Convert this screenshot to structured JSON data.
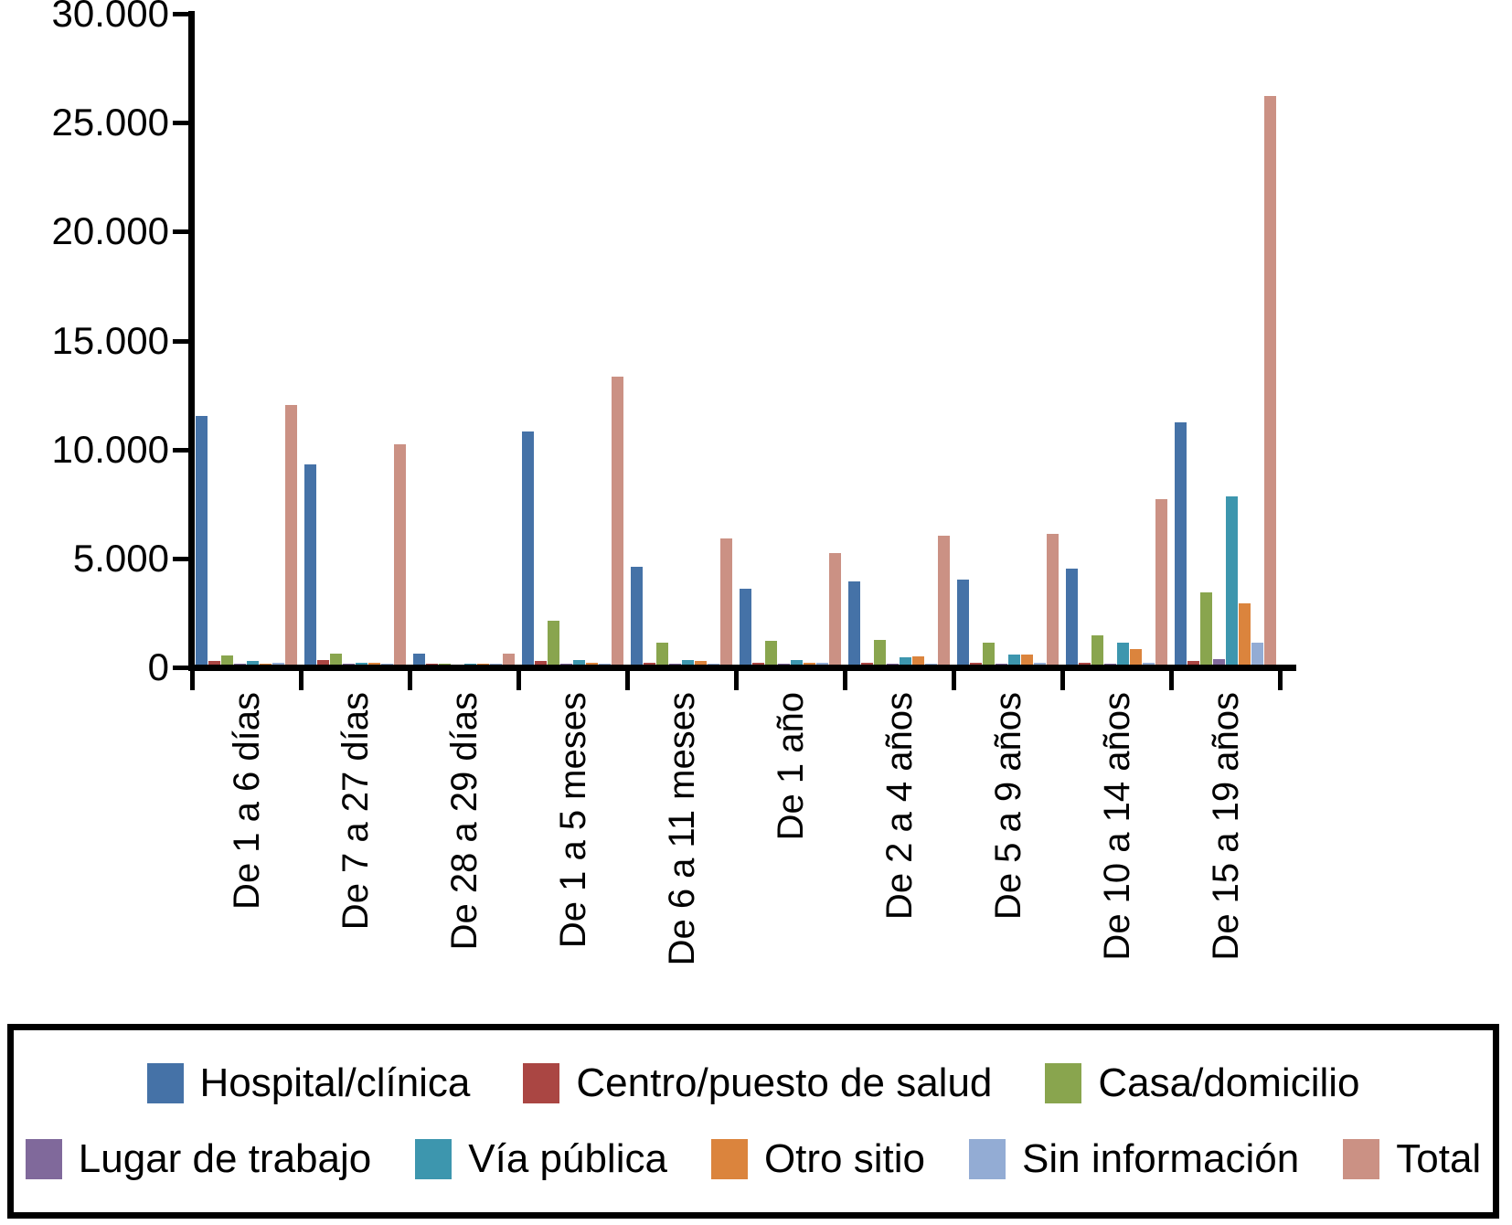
{
  "chart_data": {
    "type": "bar",
    "title": "",
    "xlabel": "",
    "ylabel": "",
    "ylim": [
      0,
      30000
    ],
    "grid": false,
    "legend_position": "bottom-box",
    "y_ticks": [
      {
        "value": 30000,
        "label": "30.000"
      },
      {
        "value": 25000,
        "label": "25.000"
      },
      {
        "value": 20000,
        "label": "20.000"
      },
      {
        "value": 15000,
        "label": "15.000"
      },
      {
        "value": 10000,
        "label": "10.000"
      },
      {
        "value": 5000,
        "label": "5.000"
      },
      {
        "value": 0,
        "label": "0"
      }
    ],
    "categories": [
      "De 1 a 6 días",
      "De 7 a 27 días",
      "De 28 a 29 días",
      "De 1 a 5 meses",
      "De 6 a 11 meses",
      "De 1 año",
      "De 2 a 4 años",
      "De 5 a 9 años",
      "De 10 a 14 años",
      "De 15 a 19 años"
    ],
    "series": [
      {
        "name": "Hospital/clínica",
        "color": "#4572A7",
        "values": [
          11400,
          9200,
          500,
          10700,
          4500,
          3500,
          3800,
          3900,
          4400,
          11100
        ]
      },
      {
        "name": "Centro/puesto de salud",
        "color": "#AA4643",
        "values": [
          150,
          200,
          30,
          150,
          100,
          100,
          80,
          80,
          80,
          150
        ]
      },
      {
        "name": "Casa/domicilio",
        "color": "#89A54E",
        "values": [
          400,
          500,
          50,
          2000,
          1000,
          1100,
          1150,
          1000,
          1350,
          3300
        ]
      },
      {
        "name": "Lugar de trabajo",
        "color": "#80699B",
        "values": [
          40,
          30,
          0,
          30,
          30,
          30,
          30,
          40,
          60,
          250
        ]
      },
      {
        "name": "Vía pública",
        "color": "#3D96AE",
        "values": [
          150,
          100,
          20,
          200,
          200,
          200,
          350,
          450,
          1000,
          7700
        ]
      },
      {
        "name": "Otro sitio",
        "color": "#DB843D",
        "values": [
          50,
          80,
          10,
          100,
          150,
          100,
          380,
          450,
          700,
          2800
        ]
      },
      {
        "name": "Sin información",
        "color": "#93ACD4",
        "values": [
          100,
          60,
          10,
          60,
          60,
          80,
          60,
          100,
          100,
          1000
        ]
      },
      {
        "name": "Total",
        "color": "#CB9184",
        "values": [
          11900,
          10100,
          500,
          13200,
          5800,
          5100,
          5900,
          6000,
          7600,
          26100
        ]
      }
    ],
    "legend_rows": [
      [
        0,
        1,
        2
      ],
      [
        3,
        4,
        5,
        6,
        7
      ]
    ]
  }
}
